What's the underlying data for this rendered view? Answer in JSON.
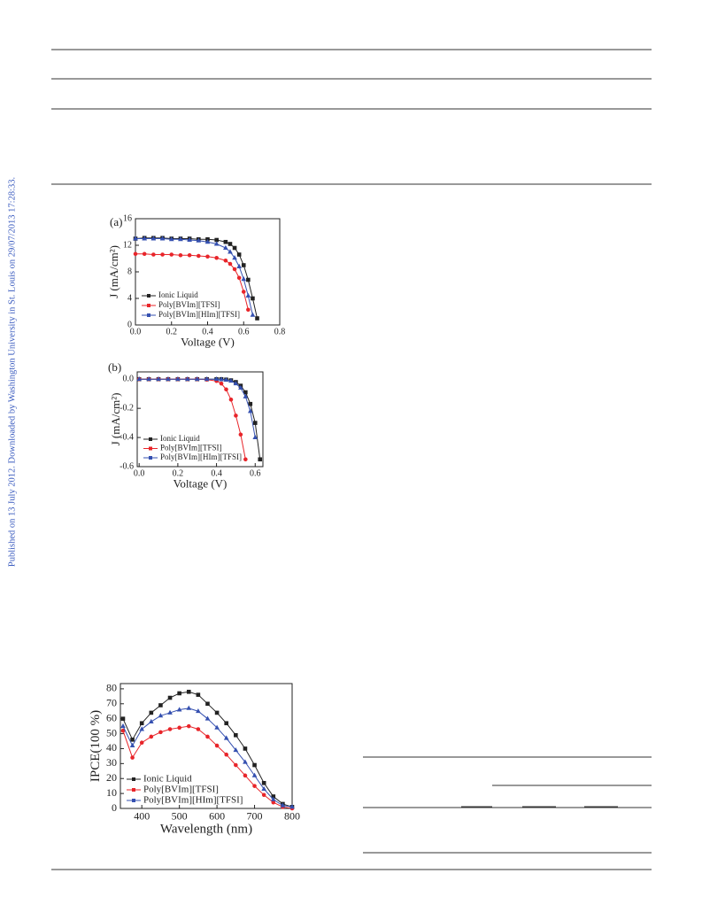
{
  "side_note": "Published on 13 July 2012. Downloaded by Washington University in St. Louis on 29/07/2013 17:28:33.",
  "chart_data": [
    {
      "type": "line",
      "panel": "(a)",
      "xlabel": "Voltage (V)",
      "ylabel": "J (mA/cm²)",
      "x": [
        0,
        0.05,
        0.1,
        0.15,
        0.2,
        0.25,
        0.3,
        0.35,
        0.4,
        0.45,
        0.5,
        0.525,
        0.55,
        0.575,
        0.6,
        0.625,
        0.65,
        0.675,
        0.7
      ],
      "series": [
        {
          "name": "Ionic Liquid",
          "color": "#222222",
          "marker": "square",
          "values": [
            13.0,
            13.1,
            13.1,
            13.1,
            13.0,
            13.0,
            13.0,
            12.9,
            12.9,
            12.8,
            12.5,
            12.2,
            11.6,
            10.6,
            9.0,
            6.8,
            4.0,
            1.0,
            null
          ]
        },
        {
          "name": "Poly[BVIm][TFSI]",
          "color": "#e8252a",
          "marker": "circle",
          "values": [
            10.7,
            10.7,
            10.6,
            10.6,
            10.6,
            10.5,
            10.5,
            10.4,
            10.3,
            10.1,
            9.7,
            9.2,
            8.4,
            7.1,
            5.0,
            2.3,
            null,
            null,
            null
          ]
        },
        {
          "name": "Poly[BVIm][HIm][TFSI]",
          "color": "#3550b0",
          "marker": "triangle",
          "values": [
            13.0,
            13.0,
            13.0,
            13.0,
            12.9,
            12.9,
            12.8,
            12.7,
            12.5,
            12.2,
            11.6,
            11.0,
            10.1,
            8.8,
            6.9,
            4.4,
            1.5,
            null,
            null
          ]
        }
      ],
      "xlim": [
        0,
        0.8
      ],
      "xticks": [
        {
          "value": 0,
          "label": "0.0"
        },
        0.2,
        0.4,
        0.6,
        0.8
      ],
      "ylim": [
        0,
        16
      ],
      "yticks": [
        0,
        4,
        8,
        12,
        16
      ],
      "legend": "lower left"
    },
    {
      "type": "line",
      "panel": "(b)",
      "xlabel": "Voltage (V)",
      "ylabel": "J (mA/cm²)",
      "x": [
        0,
        0.05,
        0.1,
        0.15,
        0.2,
        0.25,
        0.3,
        0.35,
        0.4,
        0.425,
        0.45,
        0.475,
        0.5,
        0.525,
        0.55,
        0.575,
        0.6,
        0.625
      ],
      "series": [
        {
          "name": "Ionic Liquid",
          "color": "#222222",
          "marker": "square",
          "values": [
            0,
            0,
            0,
            0,
            0,
            0,
            0,
            0,
            0,
            0,
            -0.003,
            -0.008,
            -0.02,
            -0.045,
            -0.09,
            -0.17,
            -0.3,
            -0.55
          ]
        },
        {
          "name": "Poly[BVIm][TFSI]",
          "color": "#e8252a",
          "marker": "circle",
          "values": [
            0,
            0,
            0,
            0,
            0,
            0,
            0,
            -0.003,
            -0.012,
            -0.03,
            -0.07,
            -0.14,
            -0.25,
            -0.38,
            -0.55,
            null,
            null,
            null
          ]
        },
        {
          "name": "Poly[BVIm][HIm][TFSI]",
          "color": "#3550b0",
          "marker": "triangle",
          "values": [
            0,
            0,
            0,
            0,
            0,
            0,
            0,
            0,
            0,
            -0.002,
            -0.005,
            -0.012,
            -0.03,
            -0.06,
            -0.12,
            -0.22,
            -0.4,
            null
          ]
        }
      ],
      "xlim": [
        -0.01,
        0.64
      ],
      "xticks": [
        {
          "value": 0,
          "label": "0.0"
        },
        0.2,
        0.4,
        0.6
      ],
      "ylim": [
        -0.6,
        0.05
      ],
      "yticks": [
        {
          "value": 0,
          "label": "0.0"
        },
        -0.2,
        -0.4,
        -0.6
      ],
      "legend": "lower left"
    },
    {
      "type": "line",
      "xlabel": "Wavelength (nm)",
      "ylabel": "IPCE(100 %)",
      "x": [
        350,
        375,
        400,
        425,
        450,
        475,
        500,
        525,
        550,
        575,
        600,
        625,
        650,
        675,
        700,
        725,
        750,
        775,
        800
      ],
      "series": [
        {
          "name": "Ionic Liquid",
          "color": "#222222",
          "marker": "square",
          "values": [
            60,
            46,
            57,
            64,
            69,
            74,
            77,
            78,
            76,
            70,
            64,
            57,
            49,
            40,
            29,
            17,
            8,
            3,
            1
          ]
        },
        {
          "name": "Poly[BVIm][TFSI]",
          "color": "#e8252a",
          "marker": "circle",
          "values": [
            52,
            34,
            44,
            48,
            51,
            53,
            54,
            55,
            53,
            48,
            42,
            36,
            29,
            22,
            15,
            9,
            4,
            1,
            0
          ]
        },
        {
          "name": "Poly[BVIm][HIm][TFSI]",
          "color": "#3550b0",
          "marker": "triangle",
          "values": [
            55,
            42,
            53,
            58,
            62,
            64,
            66,
            67,
            65,
            60,
            54,
            47,
            39,
            31,
            22,
            13,
            6,
            2,
            1
          ]
        }
      ],
      "xlim": [
        343,
        800
      ],
      "xticks": [
        400,
        500,
        600,
        700,
        800
      ],
      "ylim": [
        0,
        83.5
      ],
      "yticks": [
        0,
        10,
        20,
        30,
        40,
        50,
        60,
        70,
        80
      ],
      "legend": "lower left"
    }
  ]
}
